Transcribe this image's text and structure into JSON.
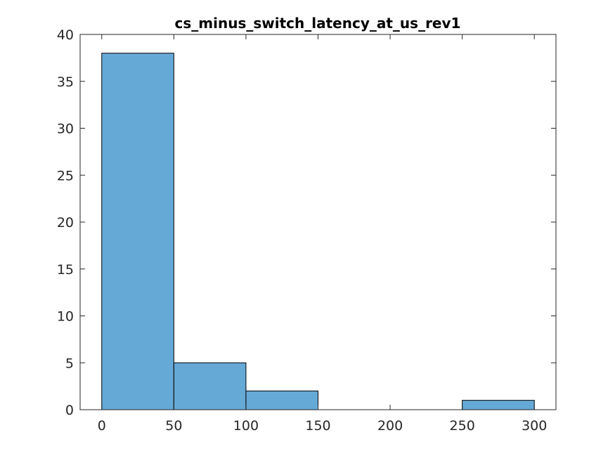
{
  "chart_data": {
    "type": "bar",
    "subtype": "histogram",
    "title": "cs_minus_switch_latency_at_us_rev1",
    "xlabel": "",
    "ylabel": "",
    "bins": [
      {
        "x0": 0,
        "x1": 50,
        "count": 38
      },
      {
        "x0": 50,
        "x1": 100,
        "count": 5
      },
      {
        "x0": 100,
        "x1": 150,
        "count": 2
      },
      {
        "x0": 150,
        "x1": 200,
        "count": 0
      },
      {
        "x0": 200,
        "x1": 250,
        "count": 0
      },
      {
        "x0": 250,
        "x1": 300,
        "count": 1
      }
    ],
    "xlim": [
      -15,
      315
    ],
    "ylim": [
      0,
      40
    ],
    "xticks": [
      0,
      50,
      100,
      150,
      200,
      250,
      300
    ],
    "yticks": [
      0,
      5,
      10,
      15,
      20,
      25,
      30,
      35,
      40
    ],
    "bar_color": "#65a9d7",
    "edge_color": "#000000",
    "grid": false,
    "legend": "none"
  }
}
